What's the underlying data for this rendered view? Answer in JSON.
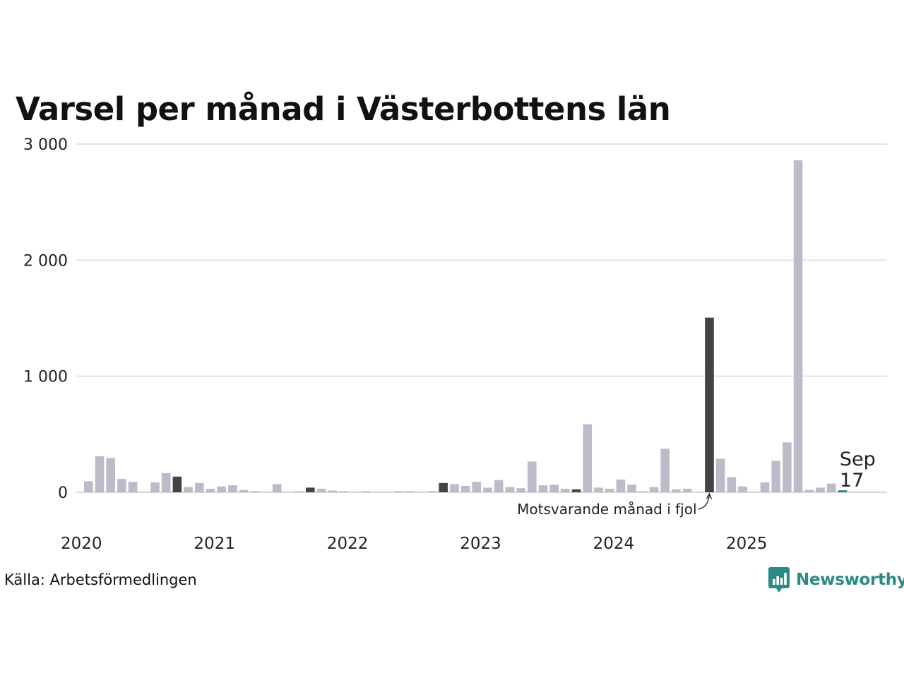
{
  "title": "Varsel per månad i Västerbottens län",
  "source": "Källa: Arbetsförmedlingen",
  "brand": {
    "name": "Newsworthy",
    "color": "#2a8a86"
  },
  "colors": {
    "bar": "#bcbbca",
    "same_month": "#444444",
    "latest": "#2a8a86",
    "grid": "#e3e3e3"
  },
  "chart_data": {
    "type": "bar",
    "title": "Varsel per månad i Västerbottens län",
    "xlabel": "",
    "ylabel": "",
    "ylim": [
      0,
      3000
    ],
    "yticks": [
      0,
      1000,
      2000,
      3000
    ],
    "ytick_labels": [
      "0",
      "1 000",
      "2 000",
      "3 000"
    ],
    "year_labels": [
      "2020",
      "2021",
      "2022",
      "2023",
      "2024",
      "2025"
    ],
    "start": "2020-01",
    "values": [
      95,
      310,
      295,
      115,
      90,
      0,
      85,
      165,
      135,
      45,
      80,
      30,
      50,
      60,
      20,
      10,
      0,
      70,
      0,
      5,
      40,
      30,
      15,
      10,
      0,
      5,
      0,
      0,
      10,
      5,
      0,
      10,
      80,
      70,
      55,
      90,
      40,
      105,
      45,
      35,
      265,
      60,
      65,
      30,
      25,
      585,
      40,
      30,
      110,
      65,
      5,
      45,
      375,
      25,
      30,
      0,
      1505,
      290,
      130,
      50,
      0,
      85,
      270,
      430,
      2860,
      20,
      40,
      75,
      17
    ],
    "same_month_indices": [
      8,
      20,
      32,
      44,
      56
    ],
    "latest": {
      "month": "Sep",
      "value": 17
    },
    "annotation": "Motsvarande månad i fjol"
  }
}
